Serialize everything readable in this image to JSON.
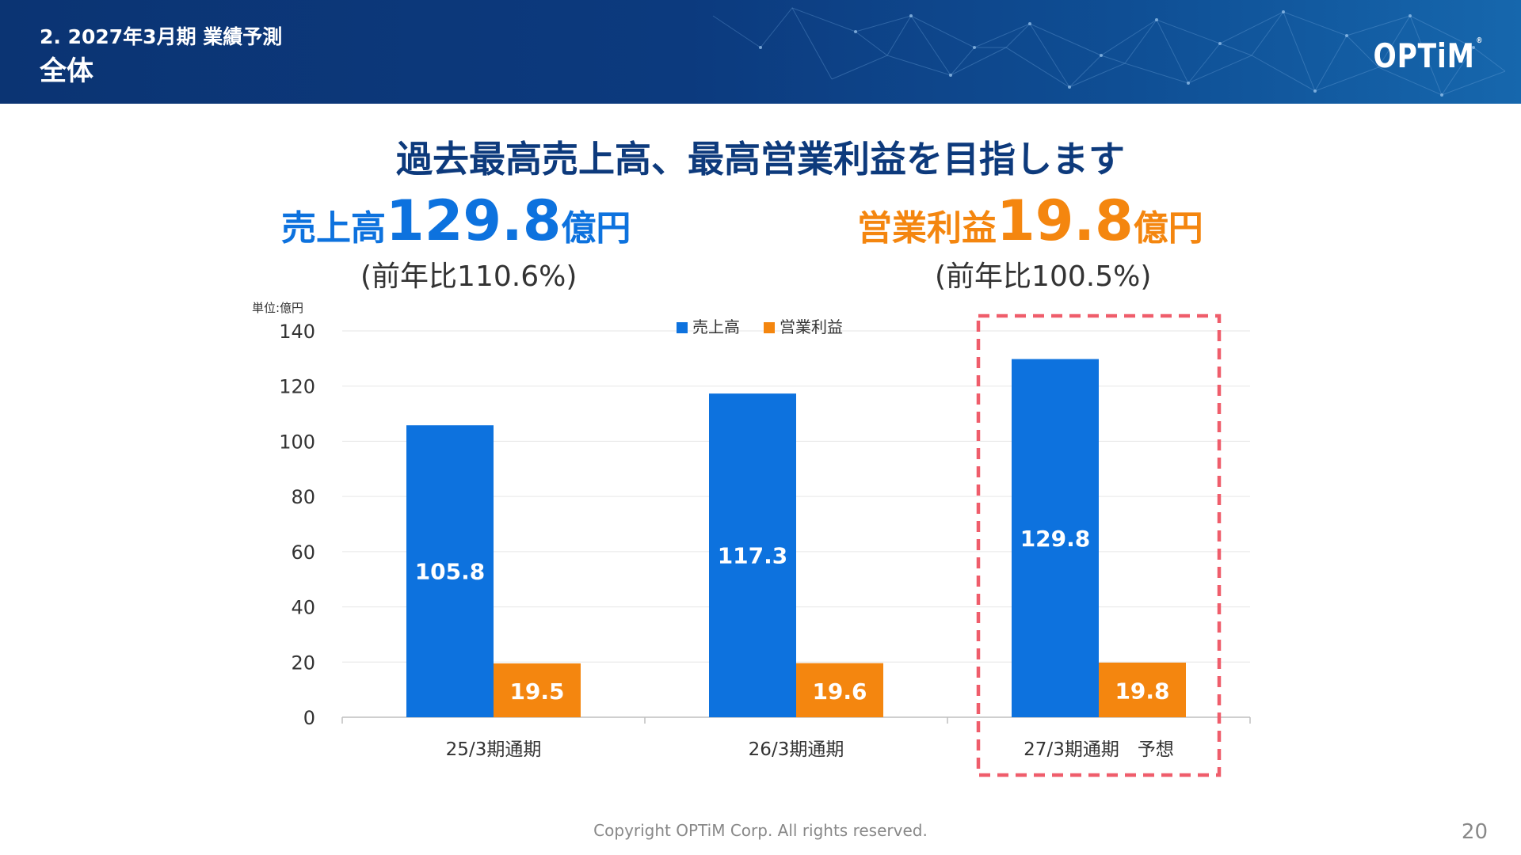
{
  "header": {
    "subtitle": "2. 2027年3月期 業績予測",
    "title": "全体",
    "logo": "OPTiM",
    "logo_mark": "®"
  },
  "headline": "過去最高売上高、最高営業利益を目指します",
  "kpis": {
    "sales": {
      "label": "売上高",
      "value": "129.8",
      "unit": "億円",
      "yoy": "(前年比110.6%)"
    },
    "profit": {
      "label": "営業利益",
      "value": "19.8",
      "unit": "億円",
      "yoy": "(前年比100.5%)"
    }
  },
  "colors": {
    "sales": "#0d72de",
    "profit": "#f4860f",
    "highlight": "#ef5d6b",
    "header_bg": "#0c3a7e"
  },
  "chart_data": {
    "type": "bar",
    "unit_label": "単位:億円",
    "categories": [
      "25/3期通期",
      "26/3期通期",
      "27/3期通期　予想"
    ],
    "series": [
      {
        "name": "売上高",
        "values": [
          105.8,
          117.3,
          129.8
        ]
      },
      {
        "name": "営業利益",
        "values": [
          19.5,
          19.6,
          19.8
        ]
      }
    ],
    "ylim": [
      0,
      140
    ],
    "yticks": [
      0,
      20,
      40,
      60,
      80,
      100,
      120,
      140
    ],
    "grid": true,
    "legend_position": "top-center",
    "highlighted_category": "27/3期通期　予想"
  },
  "footer": {
    "copyright": "Copyright OPTiM Corp. All rights reserved.",
    "page": "20"
  }
}
